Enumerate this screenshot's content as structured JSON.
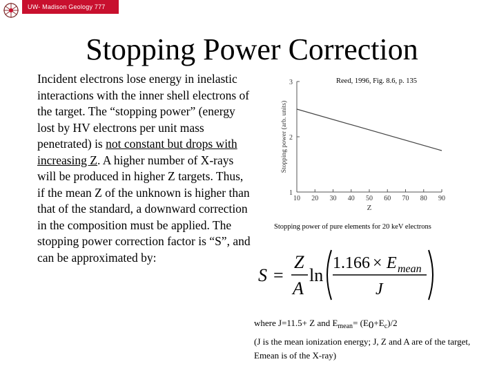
{
  "header": {
    "banner_text": "UW- Madison Geology 777",
    "logo_icon": "uw-crest-icon",
    "banner_color": "#c8102e"
  },
  "slide": {
    "title": "Stopping Power Correction",
    "body": {
      "part1": "Incident electrons lose energy in inelastic interactions with the inner shell electrons of the target. The “stopping power” (energy lost by HV electrons per unit mass penetrated) is ",
      "underlined": "not constant but drops with increasing Z",
      "part2": ". A higher number of X-rays will be produced in higher Z targets. Thus, if the mean Z of the unknown is higher than that of the standard, a downward correction in the composition must be applied. The stopping power correction factor is “S”, and can be approximated by:"
    }
  },
  "figure": {
    "citation": "Reed, 1996, Fig. 8.6, p. 135",
    "caption": "Stopping power of pure elements for 20 keV electrons"
  },
  "chart_data": {
    "type": "line",
    "title": "",
    "xlabel": "Z",
    "ylabel": "Stopping power (arb. units)",
    "xlim": [
      10,
      90
    ],
    "ylim": [
      1,
      3
    ],
    "x_ticks": [
      10,
      20,
      30,
      40,
      50,
      60,
      70,
      80,
      90
    ],
    "y_ticks": [
      1,
      2,
      3
    ],
    "series": [
      {
        "x": [
          10,
          90
        ],
        "y": [
          2.5,
          1.75
        ]
      }
    ],
    "grid": false
  },
  "formula": {
    "lhs": "S",
    "eq": "=",
    "frac_num": "Z",
    "frac_den": "A",
    "ln": "ln",
    "inner_num_coef": "1.166",
    "inner_num_times": "×",
    "inner_num_var": "E",
    "inner_num_sub": "mean",
    "inner_den": "J"
  },
  "definitions": {
    "where_prefix": "where J=11.5+ Z and E",
    "where_sub1": "mean",
    "where_mid": "= (E",
    "where_sub2": "0",
    "where_plus": "+E",
    "where_sub3": "c",
    "where_end": ")/2",
    "note": "(J is the mean ionization energy; J, Z and A are of the target, Emean is of the X-ray)"
  }
}
